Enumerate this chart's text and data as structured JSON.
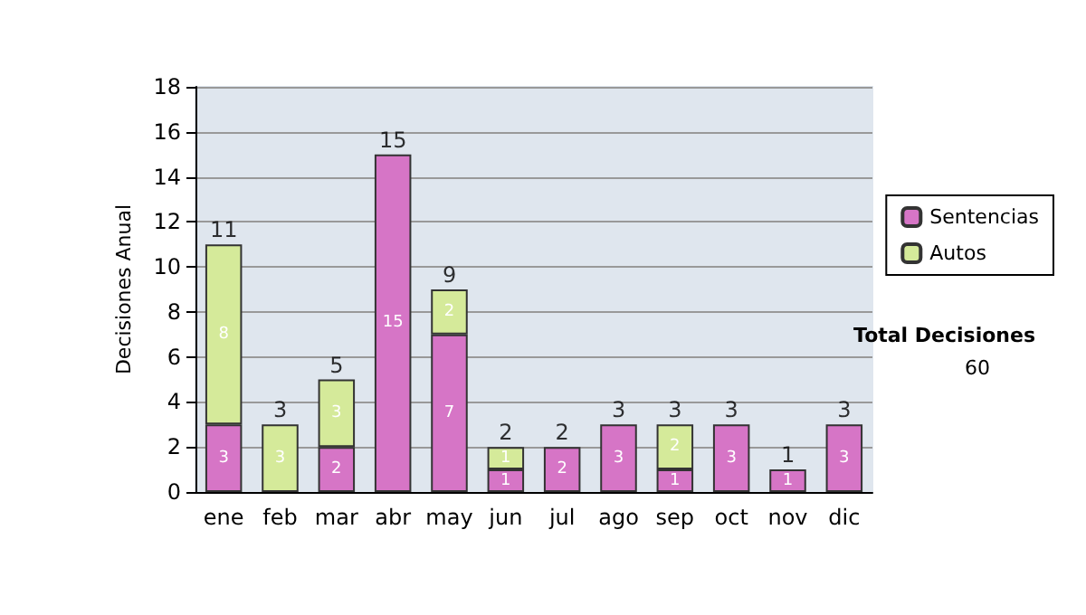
{
  "chart_data": {
    "type": "bar",
    "stacked": true,
    "ylabel": "Decisiones Anual",
    "categories": [
      "ene",
      "feb",
      "mar",
      "abr",
      "may",
      "jun",
      "jul",
      "ago",
      "sep",
      "oct",
      "nov",
      "dic"
    ],
    "series": [
      {
        "name": "Sentencias",
        "color": "#d675c6",
        "values": [
          3,
          null,
          2,
          15,
          7,
          1,
          2,
          3,
          1,
          3,
          1,
          3
        ]
      },
      {
        "name": "Autos",
        "color": "#d5ea9a",
        "values": [
          8,
          3,
          3,
          null,
          2,
          1,
          null,
          null,
          2,
          null,
          null,
          null
        ]
      }
    ],
    "totals": [
      "11",
      "3",
      "5",
      "15",
      "9",
      "2",
      "2",
      "3",
      "3",
      "3",
      "1",
      "3"
    ],
    "data_labels": true,
    "ylim": [
      0,
      18
    ],
    "yticks": [
      0,
      2,
      4,
      6,
      8,
      10,
      12,
      14,
      16,
      18
    ],
    "grid": "y",
    "legend": "right",
    "annotations": [
      "Total Decisiones",
      "60"
    ]
  }
}
